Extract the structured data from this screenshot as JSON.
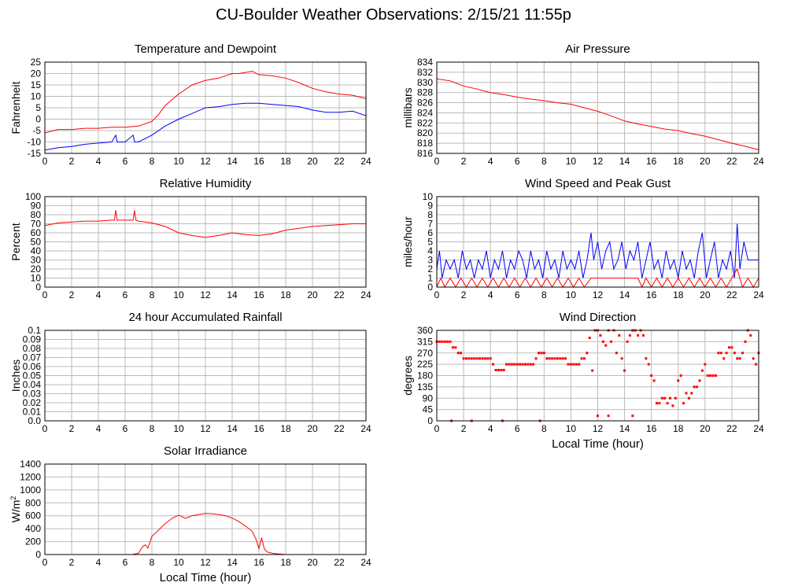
{
  "page_title": "CU-Boulder Weather Observations: 2/15/21 11:55p",
  "colors": {
    "red": "#ff0000",
    "blue": "#0000ff",
    "grid": "#bbbbbb",
    "axis": "#000000"
  },
  "chart_data": [
    {
      "id": "temp",
      "type": "line",
      "title": "Temperature and Dewpoint",
      "ylabel": "Fahrenheit",
      "xlabel": "",
      "xlim": [
        0,
        24
      ],
      "ylim": [
        -15,
        25
      ],
      "yticks": [
        -15,
        -10,
        -5,
        0,
        5,
        10,
        15,
        20,
        25
      ],
      "xticks": [
        0,
        2,
        4,
        6,
        8,
        10,
        12,
        14,
        16,
        18,
        20,
        22,
        24
      ],
      "grid": true,
      "series": [
        {
          "color": "#ff0000",
          "x": [
            0,
            1,
            2,
            3,
            4,
            5,
            6,
            7,
            7.5,
            8,
            8.5,
            9,
            10,
            11,
            12,
            13,
            14,
            14.5,
            15,
            15.5,
            16,
            17,
            18,
            19,
            20,
            21,
            22,
            23,
            24
          ],
          "y": [
            -6,
            -4.5,
            -4.5,
            -4,
            -4,
            -3.5,
            -3.5,
            -3,
            -2,
            -1,
            2,
            6,
            11,
            15,
            17,
            18,
            20,
            20,
            20.5,
            21,
            19.5,
            19,
            18,
            16,
            13.5,
            12,
            11,
            10.5,
            9
          ]
        },
        {
          "color": "#0000ff",
          "x": [
            0,
            1,
            2,
            3,
            4,
            5,
            5.3,
            5.4,
            6,
            6.6,
            6.7,
            7,
            8,
            9,
            10,
            11,
            12,
            13,
            14,
            15,
            16,
            17,
            18,
            19,
            20,
            21,
            22,
            23,
            24
          ],
          "y": [
            -13.5,
            -12.5,
            -12,
            -11,
            -10.5,
            -10,
            -7,
            -10,
            -10,
            -7,
            -10,
            -10,
            -7,
            -3,
            0,
            2.5,
            5,
            5.5,
            6.5,
            7,
            7,
            6.5,
            6,
            5.5,
            4,
            3,
            3,
            3.5,
            1.5
          ]
        }
      ]
    },
    {
      "id": "pressure",
      "type": "line",
      "title": "Air Pressure",
      "ylabel": "millibars",
      "xlabel": "",
      "xlim": [
        0,
        24
      ],
      "ylim": [
        816,
        834
      ],
      "yticks": [
        816,
        818,
        820,
        822,
        824,
        826,
        828,
        830,
        832,
        834
      ],
      "xticks": [
        0,
        2,
        4,
        6,
        8,
        10,
        12,
        14,
        16,
        18,
        20,
        22,
        24
      ],
      "grid": true,
      "series": [
        {
          "color": "#ff0000",
          "x": [
            0,
            1,
            2,
            3,
            4,
            5,
            6,
            7,
            8,
            9,
            10,
            11,
            12,
            13,
            14,
            15,
            16,
            17,
            18,
            19,
            20,
            21,
            22,
            23,
            24
          ],
          "y": [
            830.7,
            830.3,
            829.3,
            828.7,
            828,
            827.6,
            827.1,
            826.7,
            826.4,
            826,
            825.7,
            825,
            824.3,
            823.4,
            822.4,
            821.8,
            821.3,
            820.8,
            820.5,
            819.9,
            819.4,
            818.7,
            818,
            817.4,
            816.7
          ]
        }
      ]
    },
    {
      "id": "humidity",
      "type": "line",
      "title": "Relative Humidity",
      "ylabel": "Percent",
      "xlabel": "",
      "xlim": [
        0,
        24
      ],
      "ylim": [
        0,
        100
      ],
      "yticks": [
        0,
        10,
        20,
        30,
        40,
        50,
        60,
        70,
        80,
        90,
        100
      ],
      "xticks": [
        0,
        2,
        4,
        6,
        8,
        10,
        12,
        14,
        16,
        18,
        20,
        22,
        24
      ],
      "grid": true,
      "series": [
        {
          "color": "#ff0000",
          "x": [
            0,
            1,
            2,
            3,
            4,
            5,
            5.2,
            5.3,
            5.4,
            6,
            6.6,
            6.7,
            6.8,
            7,
            8,
            9,
            10,
            11,
            12,
            13,
            14,
            15,
            16,
            17,
            18,
            19,
            20,
            21,
            22,
            23,
            24
          ],
          "y": [
            68,
            71,
            72,
            73,
            73,
            74,
            74,
            85,
            74,
            74,
            74,
            85,
            74,
            73,
            71,
            67,
            60,
            57,
            55,
            57,
            60,
            58,
            57,
            59,
            63,
            65,
            67,
            68,
            69,
            70,
            70
          ]
        }
      ]
    },
    {
      "id": "wind",
      "type": "line",
      "title": "Wind Speed and Peak Gust",
      "ylabel": "miles/hour",
      "xlabel": "",
      "xlim": [
        0,
        24
      ],
      "ylim": [
        0,
        10
      ],
      "yticks": [
        0,
        1,
        2,
        3,
        4,
        5,
        6,
        7,
        8,
        9,
        10
      ],
      "xticks": [
        0,
        2,
        4,
        6,
        8,
        10,
        12,
        14,
        16,
        18,
        20,
        22,
        24
      ],
      "grid": true,
      "series": [
        {
          "color": "#0000ff",
          "x": [
            0,
            0.2,
            0.4,
            0.7,
            1,
            1.3,
            1.6,
            1.9,
            2.2,
            2.5,
            2.8,
            3.1,
            3.4,
            3.7,
            4,
            4.3,
            4.6,
            4.9,
            5.2,
            5.5,
            5.8,
            6.1,
            6.4,
            6.7,
            7,
            7.3,
            7.6,
            7.9,
            8.2,
            8.5,
            8.8,
            9.1,
            9.4,
            9.7,
            10,
            10.3,
            10.6,
            10.9,
            11.2,
            11.5,
            11.7,
            12,
            12.3,
            12.6,
            12.9,
            13.2,
            13.5,
            13.8,
            14.1,
            14.4,
            14.7,
            15,
            15.3,
            15.6,
            15.9,
            16.2,
            16.5,
            16.8,
            17.1,
            17.4,
            17.7,
            18,
            18.3,
            18.6,
            18.9,
            19.2,
            19.5,
            19.8,
            20.1,
            20.4,
            20.7,
            21,
            21.3,
            21.6,
            21.9,
            22.2,
            22.4,
            22.6,
            22.9,
            23.2,
            23.5,
            24
          ],
          "y": [
            2,
            4,
            1,
            3,
            2,
            3,
            1,
            4,
            2,
            3,
            1,
            3,
            2,
            4,
            1,
            3,
            2,
            4,
            1,
            3,
            2,
            4,
            3,
            1,
            4,
            2,
            3,
            1,
            4,
            2,
            3,
            1,
            4,
            2,
            3,
            2,
            4,
            1,
            3,
            6,
            3,
            5,
            2,
            4,
            5,
            2,
            3,
            5,
            2,
            4,
            3,
            5,
            1,
            3,
            5,
            2,
            3,
            1,
            4,
            2,
            3,
            1,
            4,
            2,
            3,
            1,
            4,
            6,
            1,
            3,
            5,
            1,
            3,
            2,
            4,
            1,
            7,
            2,
            5,
            3,
            3,
            3
          ]
        },
        {
          "color": "#ff0000",
          "x": [
            0,
            0.3,
            0.6,
            1,
            1.4,
            1.8,
            2.2,
            2.6,
            3,
            3.4,
            3.8,
            4.2,
            4.6,
            5,
            5.4,
            5.8,
            6.2,
            6.6,
            7,
            7.4,
            7.8,
            8.2,
            8.6,
            9,
            9.4,
            9.8,
            10.2,
            10.6,
            11,
            11.5,
            12,
            13,
            14,
            15,
            15.3,
            15.6,
            16,
            16.4,
            16.8,
            17.2,
            17.6,
            18,
            18.4,
            18.8,
            19.2,
            19.6,
            20,
            20.4,
            20.8,
            21.2,
            21.6,
            22,
            22.4,
            22.8,
            23.2,
            23.6,
            24
          ],
          "y": [
            0,
            1,
            0,
            1,
            0,
            1,
            0,
            1,
            0,
            1,
            0,
            1,
            0,
            1,
            0,
            1,
            0,
            1,
            0,
            1,
            0,
            1,
            0,
            1,
            0,
            1,
            0,
            1,
            0,
            1,
            1,
            1,
            1,
            1,
            0,
            1,
            0,
            1,
            0,
            1,
            0,
            1,
            0,
            1,
            0,
            1,
            0,
            1,
            0,
            1,
            0,
            1,
            2,
            0,
            1,
            0,
            1
          ]
        }
      ]
    },
    {
      "id": "rain",
      "type": "line",
      "title": "24 hour Accumulated Rainfall",
      "ylabel": "Inches",
      "xlabel": "",
      "xlim": [
        0,
        24
      ],
      "ylim": [
        0,
        0.1
      ],
      "yticks": [
        0.0,
        0.01,
        0.02,
        0.03,
        0.04,
        0.05,
        0.06,
        0.07,
        0.08,
        0.09,
        0.1
      ],
      "ytick_labels": [
        "0.0",
        "0.01",
        "0.02",
        "0.03",
        "0.04",
        "0.05",
        "0.06",
        "0.07",
        "0.08",
        "0.09",
        "0.1"
      ],
      "xticks": [
        0,
        2,
        4,
        6,
        8,
        10,
        12,
        14,
        16,
        18,
        20,
        22,
        24
      ],
      "grid": true,
      "series": [
        {
          "color": "#ff0000",
          "x": [
            0,
            24
          ],
          "y": [
            0,
            0
          ]
        }
      ]
    },
    {
      "id": "direction",
      "type": "scatter",
      "title": "Wind Direction",
      "ylabel": "degrees",
      "xlabel": "Local Time (hour)",
      "xlim": [
        0,
        24
      ],
      "ylim": [
        0,
        360
      ],
      "yticks": [
        0,
        45,
        90,
        135,
        180,
        225,
        270,
        315,
        360
      ],
      "xticks": [
        0,
        2,
        4,
        6,
        8,
        10,
        12,
        14,
        16,
        18,
        20,
        22,
        24
      ],
      "grid": true,
      "series": [
        {
          "color": "#ff0000",
          "x": [
            0,
            0.2,
            0.4,
            0.6,
            0.8,
            1.0,
            1.2,
            1.4,
            1.6,
            1.8,
            2.0,
            2.2,
            2.4,
            2.6,
            2.8,
            3.0,
            3.2,
            3.4,
            3.6,
            3.8,
            4.0,
            4.2,
            4.4,
            4.6,
            4.8,
            5.0,
            5.2,
            5.4,
            5.6,
            5.8,
            6.0,
            6.2,
            6.4,
            6.6,
            6.8,
            7.0,
            7.2,
            7.4,
            7.6,
            7.8,
            8.0,
            8.2,
            8.4,
            8.6,
            8.8,
            9.0,
            9.2,
            9.4,
            9.6,
            9.8,
            10.0,
            10.2,
            10.4,
            10.6,
            10.8,
            11.0,
            11.2,
            11.4,
            11.6,
            11.8,
            12.0,
            12.2,
            12.4,
            12.6,
            12.8,
            13.0,
            13.2,
            13.4,
            13.6,
            13.8,
            14.0,
            14.2,
            14.4,
            14.6,
            14.8,
            15.0,
            15.2,
            15.4,
            15.6,
            15.8,
            16.0,
            16.2,
            16.4,
            16.6,
            16.8,
            17.0,
            17.2,
            17.4,
            17.6,
            17.8,
            18.0,
            18.2,
            18.4,
            18.6,
            18.8,
            19.0,
            19.2,
            19.4,
            19.6,
            19.8,
            20.0,
            20.2,
            20.4,
            20.6,
            20.8,
            21.0,
            21.2,
            21.4,
            21.6,
            21.8,
            22.0,
            22.2,
            22.4,
            22.6,
            22.8,
            23.0,
            23.2,
            23.4,
            23.6,
            23.8,
            24.0,
            1.1,
            2.6,
            4.9,
            7.7,
            12.0,
            12.8,
            14.6
          ],
          "y": [
            315,
            315,
            315,
            315,
            315,
            315,
            292,
            292,
            270,
            270,
            248,
            248,
            248,
            248,
            248,
            248,
            248,
            248,
            248,
            248,
            248,
            225,
            202,
            202,
            202,
            202,
            225,
            225,
            225,
            225,
            225,
            225,
            225,
            225,
            225,
            225,
            225,
            248,
            270,
            270,
            270,
            248,
            248,
            248,
            248,
            248,
            248,
            248,
            248,
            225,
            225,
            225,
            225,
            225,
            248,
            248,
            270,
            330,
            200,
            360,
            360,
            340,
            315,
            300,
            360,
            315,
            360,
            270,
            340,
            248,
            200,
            315,
            340,
            360,
            360,
            340,
            360,
            340,
            248,
            225,
            180,
            160,
            70,
            70,
            90,
            90,
            70,
            90,
            60,
            90,
            160,
            180,
            70,
            110,
            90,
            110,
            135,
            135,
            160,
            200,
            225,
            180,
            180,
            180,
            180,
            270,
            270,
            248,
            270,
            292,
            292,
            270,
            248,
            248,
            270,
            315,
            360,
            340,
            248,
            225,
            270,
            0,
            0,
            0,
            0,
            20,
            20,
            20
          ]
        }
      ]
    },
    {
      "id": "solar",
      "type": "line",
      "title": "Solar Irradiance",
      "ylabel": "W/m",
      "ylabel_sup": "2",
      "xlabel": "Local Time (hour)",
      "xlim": [
        0,
        24
      ],
      "ylim": [
        0,
        1400
      ],
      "yticks": [
        0,
        200,
        400,
        600,
        800,
        1000,
        1200,
        1400
      ],
      "xticks": [
        0,
        2,
        4,
        6,
        8,
        10,
        12,
        14,
        16,
        18,
        20,
        22,
        24
      ],
      "grid": true,
      "series": [
        {
          "color": "#ff0000",
          "x": [
            0,
            6.5,
            7.0,
            7.3,
            7.5,
            7.7,
            8.0,
            8.5,
            9.0,
            9.5,
            10.0,
            10.5,
            11.0,
            11.5,
            12.0,
            12.5,
            13.0,
            13.5,
            14.0,
            14.5,
            15.0,
            15.5,
            15.8,
            16.0,
            16.2,
            16.4,
            16.6,
            17.0,
            17.5,
            18.0,
            24
          ],
          "y": [
            0,
            0,
            20,
            120,
            150,
            100,
            280,
            380,
            480,
            560,
            610,
            560,
            600,
            620,
            635,
            632,
            620,
            600,
            565,
            510,
            440,
            360,
            230,
            90,
            260,
            90,
            40,
            20,
            8,
            0,
            0
          ]
        }
      ]
    }
  ]
}
